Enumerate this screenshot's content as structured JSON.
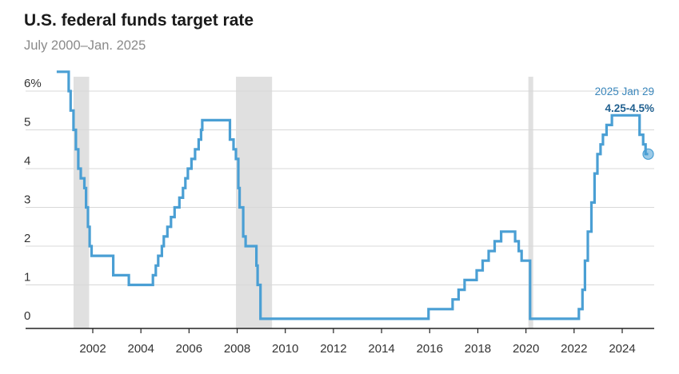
{
  "chart_data": {
    "type": "line",
    "title": "U.S. federal funds target rate",
    "subtitle": "July 2000–Jan. 2025",
    "xlabel": "",
    "ylabel": "",
    "xlim": [
      2000.0,
      2025.3
    ],
    "ylim": [
      0,
      6.5
    ],
    "y_ticks": [
      0,
      1,
      2,
      3,
      4,
      5,
      6
    ],
    "y_tick_labels": [
      "0",
      "1",
      "2",
      "3",
      "4",
      "5",
      "6%"
    ],
    "x_ticks": [
      2002,
      2004,
      2006,
      2008,
      2010,
      2012,
      2014,
      2016,
      2018,
      2020,
      2022,
      2024
    ],
    "x_tick_labels": [
      "2002",
      "2004",
      "2006",
      "2008",
      "2010",
      "2012",
      "2014",
      "2016",
      "2018",
      "2020",
      "2022",
      "2024"
    ],
    "grid": "horizontal",
    "shaded_periods": [
      {
        "start": 2001.2,
        "end": 2001.85
      },
      {
        "start": 2007.95,
        "end": 2009.45
      },
      {
        "start": 2020.1,
        "end": 2020.3
      }
    ],
    "series": [
      {
        "color": "#4a9fd4",
        "step": true,
        "points": [
          [
            2000.5,
            6.5
          ],
          [
            2001.0,
            6.0
          ],
          [
            2001.08,
            5.5
          ],
          [
            2001.2,
            5.0
          ],
          [
            2001.3,
            4.5
          ],
          [
            2001.4,
            4.0
          ],
          [
            2001.5,
            3.75
          ],
          [
            2001.65,
            3.5
          ],
          [
            2001.72,
            3.0
          ],
          [
            2001.8,
            2.5
          ],
          [
            2001.87,
            2.0
          ],
          [
            2001.95,
            1.75
          ],
          [
            2002.85,
            1.25
          ],
          [
            2003.5,
            1.0
          ],
          [
            2004.5,
            1.25
          ],
          [
            2004.62,
            1.5
          ],
          [
            2004.72,
            1.75
          ],
          [
            2004.87,
            2.0
          ],
          [
            2004.95,
            2.25
          ],
          [
            2005.1,
            2.5
          ],
          [
            2005.25,
            2.75
          ],
          [
            2005.4,
            3.0
          ],
          [
            2005.6,
            3.25
          ],
          [
            2005.75,
            3.5
          ],
          [
            2005.85,
            3.75
          ],
          [
            2005.95,
            4.0
          ],
          [
            2006.1,
            4.25
          ],
          [
            2006.25,
            4.5
          ],
          [
            2006.4,
            4.75
          ],
          [
            2006.5,
            5.0
          ],
          [
            2006.55,
            5.25
          ],
          [
            2007.7,
            4.75
          ],
          [
            2007.85,
            4.5
          ],
          [
            2007.95,
            4.25
          ],
          [
            2008.05,
            3.5
          ],
          [
            2008.1,
            3.0
          ],
          [
            2008.25,
            2.25
          ],
          [
            2008.35,
            2.0
          ],
          [
            2008.8,
            1.5
          ],
          [
            2008.85,
            1.0
          ],
          [
            2008.97,
            0.125
          ],
          [
            2015.95,
            0.375
          ],
          [
            2016.95,
            0.625
          ],
          [
            2017.2,
            0.875
          ],
          [
            2017.45,
            1.125
          ],
          [
            2017.95,
            1.375
          ],
          [
            2018.2,
            1.625
          ],
          [
            2018.45,
            1.875
          ],
          [
            2018.7,
            2.125
          ],
          [
            2018.97,
            2.375
          ],
          [
            2019.55,
            2.125
          ],
          [
            2019.7,
            1.875
          ],
          [
            2019.82,
            1.625
          ],
          [
            2020.17,
            0.125
          ],
          [
            2022.2,
            0.375
          ],
          [
            2022.35,
            0.875
          ],
          [
            2022.45,
            1.625
          ],
          [
            2022.57,
            2.375
          ],
          [
            2022.72,
            3.125
          ],
          [
            2022.85,
            3.875
          ],
          [
            2022.97,
            4.375
          ],
          [
            2023.1,
            4.625
          ],
          [
            2023.2,
            4.875
          ],
          [
            2023.35,
            5.125
          ],
          [
            2023.57,
            5.375
          ],
          [
            2024.72,
            4.875
          ],
          [
            2024.87,
            4.625
          ],
          [
            2024.97,
            4.375
          ],
          [
            2025.08,
            4.375
          ]
        ]
      }
    ],
    "annotation": {
      "date_label": "2025 Jan 29",
      "value_label": "4.25-4.5%",
      "x": 2025.08,
      "y": 4.375
    },
    "colors": {
      "line": "#4a9fd4",
      "annotation_date": "#3a86bb",
      "annotation_value": "#1f5f8f",
      "shade": "#e0e0e0",
      "grid": "#d8d8d8",
      "axis": "#222222"
    }
  }
}
